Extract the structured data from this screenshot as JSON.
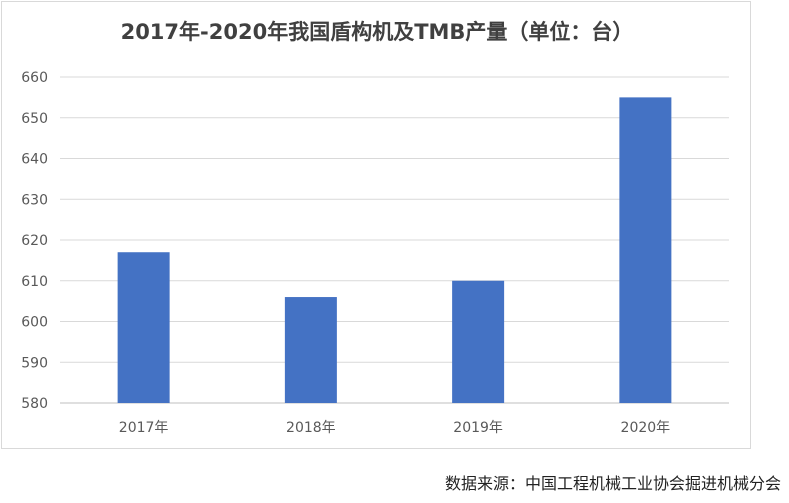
{
  "chart_data": {
    "type": "bar",
    "title": "2017年-2020年我国盾构机及TMB产量（单位：台）",
    "categories": [
      "2017年",
      "2018年",
      "2019年",
      "2020年"
    ],
    "values": [
      617,
      606,
      610,
      655
    ],
    "ylim": [
      580,
      660
    ],
    "yticks": [
      580,
      590,
      600,
      610,
      620,
      630,
      640,
      650,
      660
    ],
    "xlabel": "",
    "ylabel": "",
    "grid": true,
    "bar_color": "#4472c4"
  },
  "source": "数据来源：中国工程机械工业协会掘进机械分会"
}
